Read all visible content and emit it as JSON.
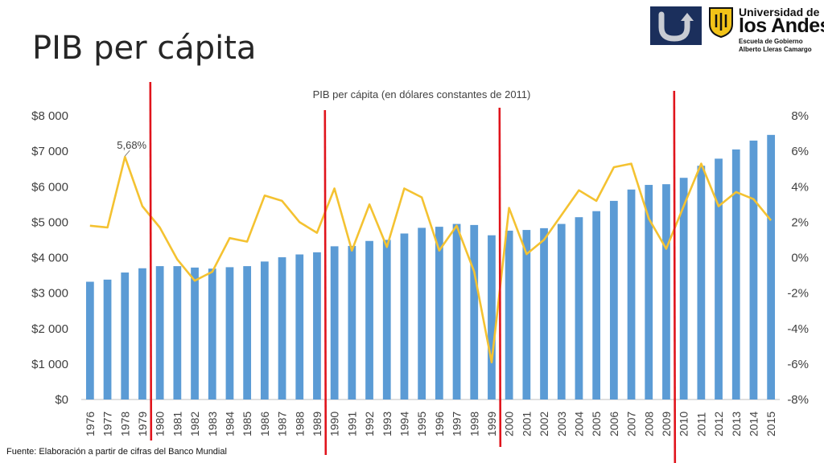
{
  "slide": {
    "title": "PIB per cápita",
    "footer": "Fuente: Elaboración a partir de cifras del Banco Mundial"
  },
  "logos": {
    "university_line1": "Universidad de",
    "university_line2": "los Andes",
    "school_line1": "Escuela de Gobierno",
    "school_line2": "Alberto Lleras Camargo",
    "navy": "#1b2f5c",
    "gold": "#f2c318"
  },
  "chart_data": {
    "type": "bar",
    "title": "PIB per cápita (en dólares constantes de 2011)",
    "categories": [
      "1976",
      "1977",
      "1978",
      "1979",
      "1980",
      "1981",
      "1982",
      "1983",
      "1984",
      "1985",
      "1986",
      "1987",
      "1988",
      "1989",
      "1990",
      "1991",
      "1992",
      "1993",
      "1994",
      "1995",
      "1996",
      "1997",
      "1998",
      "1999",
      "2000",
      "2001",
      "2002",
      "2003",
      "2004",
      "2005",
      "2006",
      "2007",
      "2008",
      "2009",
      "2010",
      "2011",
      "2012",
      "2013",
      "2014",
      "2015"
    ],
    "ylim": [
      0,
      8000
    ],
    "y2lim": [
      -8,
      8
    ],
    "y_ticks": [
      "$0",
      "$1 000",
      "$2 000",
      "$3 000",
      "$4 000",
      "$5 000",
      "$6 000",
      "$7 000",
      "$8 000"
    ],
    "y2_ticks": [
      "-8%",
      "-6%",
      "-4%",
      "-2%",
      "0%",
      "2%",
      "4%",
      "6%",
      "8%"
    ],
    "bar_color": "#5b9bd5",
    "line_color": "#f4c231",
    "marker_color": "#e0141c",
    "series": [
      {
        "axis": "left",
        "type": "bar",
        "values": [
          3320,
          3380,
          3580,
          3700,
          3760,
          3760,
          3720,
          3690,
          3730,
          3760,
          3890,
          4010,
          4090,
          4150,
          4320,
          4330,
          4470,
          4500,
          4680,
          4840,
          4870,
          4950,
          4920,
          4630,
          4760,
          4780,
          4830,
          4950,
          5140,
          5310,
          5600,
          5920,
          6050,
          6070,
          6250,
          6590,
          6790,
          7050,
          7300,
          7460
        ]
      },
      {
        "axis": "right",
        "type": "line",
        "values": [
          1.8,
          1.7,
          5.68,
          2.9,
          1.7,
          -0.1,
          -1.3,
          -0.8,
          1.1,
          0.9,
          3.5,
          3.2,
          2.0,
          1.4,
          3.9,
          0.4,
          3.0,
          0.6,
          3.9,
          3.4,
          0.4,
          1.8,
          -0.8,
          -5.9,
          2.8,
          0.2,
          1.0,
          2.4,
          3.8,
          3.2,
          5.1,
          5.3,
          2.2,
          0.5,
          2.9,
          5.3,
          2.9,
          3.7,
          3.3,
          2.1
        ]
      }
    ],
    "annotations": [
      {
        "category": "1978",
        "text": "5,68%"
      }
    ],
    "vertical_markers": [
      "1979",
      "1989",
      "1999",
      "2009"
    ]
  }
}
